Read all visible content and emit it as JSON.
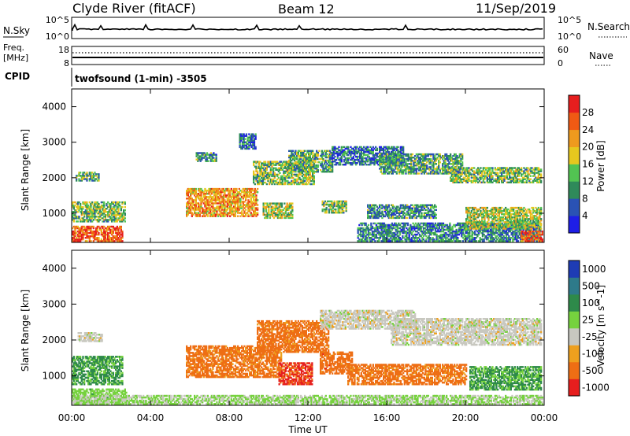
{
  "header": {
    "station": "Clyde River (fitACF)",
    "beam": "Beam 12",
    "date": "11/Sep/2019"
  },
  "strip": {
    "nsky_label": "N.Sky",
    "nsky_top": "10^5",
    "nsky_bottom": "10^0",
    "nsearch_top": "10^5",
    "nsearch_bottom": "10^0",
    "nsearch_label": "N.Search",
    "freq_label": "Freq.",
    "freq_unit": "[MHz]",
    "freq_top": "18",
    "freq_bottom": "8",
    "nave_top": "60",
    "nave_bottom": "0",
    "nave_label": "Nave",
    "cpid_label": "CPID",
    "cpid_text": "twofsound (1-min) -3505"
  },
  "axes": {
    "xlabel": "Time UT",
    "xticks": [
      "00:00",
      "04:00",
      "08:00",
      "12:00",
      "16:00",
      "20:00",
      "00:00"
    ],
    "ylabel": "Slant Range [km]",
    "yticks": [
      "1000",
      "2000",
      "3000",
      "4000"
    ]
  },
  "colorbars": {
    "power": {
      "label": "Power [dB]",
      "ticks": [
        "4",
        "8",
        "12",
        "16",
        "20",
        "24",
        "28"
      ],
      "colors": [
        "#1e1ee6",
        "#2a52b4",
        "#2f8a5a",
        "#52c452",
        "#e6c81e",
        "#ee9a1e",
        "#f05a14",
        "#e61e1e"
      ]
    },
    "velocity": {
      "label": "Velocity [m s^-1]",
      "ticks": [
        "1000",
        "500",
        "100",
        "25",
        "-25",
        "-100",
        "-500",
        "-1000"
      ],
      "colors": [
        "#1e3cb4",
        "#2e7a8a",
        "#2e8a4a",
        "#76d23e",
        "#c8c8c0",
        "#eea01e",
        "#ee6e14",
        "#e61e1e"
      ]
    }
  },
  "chart_data": [
    {
      "type": "heatmap",
      "panel": "power",
      "x_range_hours": [
        0,
        24
      ],
      "y_range_km": [
        180,
        4500
      ],
      "value_unit": "dB",
      "regions": [
        {
          "t0": 0.0,
          "t1": 2.6,
          "r0": 200,
          "r1": 650,
          "value": 26
        },
        {
          "t0": 0.0,
          "t1": 2.7,
          "r0": 750,
          "r1": 1300,
          "value": 14
        },
        {
          "t0": 0.2,
          "t1": 1.4,
          "r0": 1900,
          "r1": 2150,
          "value": 12
        },
        {
          "t0": 5.8,
          "t1": 9.4,
          "r0": 900,
          "r1": 1700,
          "value": 22
        },
        {
          "t0": 6.3,
          "t1": 7.3,
          "r0": 2450,
          "r1": 2700,
          "value": 10
        },
        {
          "t0": 8.5,
          "t1": 9.3,
          "r0": 2800,
          "r1": 3250,
          "value": 8
        },
        {
          "t0": 9.2,
          "t1": 12.3,
          "r0": 1800,
          "r1": 2450,
          "value": 14
        },
        {
          "t0": 9.7,
          "t1": 11.2,
          "r0": 850,
          "r1": 1300,
          "value": 16
        },
        {
          "t0": 11.0,
          "t1": 13.2,
          "r0": 2150,
          "r1": 2750,
          "value": 12
        },
        {
          "t0": 12.7,
          "t1": 13.9,
          "r0": 1000,
          "r1": 1350,
          "value": 14
        },
        {
          "t0": 13.2,
          "t1": 16.8,
          "r0": 2350,
          "r1": 2850,
          "value": 8
        },
        {
          "t0": 14.5,
          "t1": 23.8,
          "r0": 200,
          "r1": 700,
          "value": 9
        },
        {
          "t0": 15.0,
          "t1": 18.5,
          "r0": 850,
          "r1": 1250,
          "value": 10
        },
        {
          "t0": 15.6,
          "t1": 19.8,
          "r0": 2100,
          "r1": 2650,
          "value": 11
        },
        {
          "t0": 19.2,
          "t1": 23.8,
          "r0": 1850,
          "r1": 2300,
          "value": 14
        },
        {
          "t0": 20.0,
          "t1": 23.8,
          "r0": 550,
          "r1": 1150,
          "value": 16
        },
        {
          "t0": 22.8,
          "t1": 23.9,
          "r0": 200,
          "r1": 500,
          "value": 26
        }
      ]
    },
    {
      "type": "heatmap",
      "panel": "velocity",
      "x_range_hours": [
        0,
        24
      ],
      "y_range_km": [
        180,
        4500
      ],
      "value_unit": "m s^-1",
      "regions": [
        {
          "t0": 0.0,
          "t1": 2.8,
          "r0": 200,
          "r1": 650,
          "value": 60
        },
        {
          "t0": 0.0,
          "t1": 2.6,
          "r0": 750,
          "r1": 1550,
          "value": 150
        },
        {
          "t0": 0.3,
          "t1": 1.5,
          "r0": 1950,
          "r1": 2200,
          "value": 0
        },
        {
          "t0": 5.8,
          "t1": 10.6,
          "r0": 950,
          "r1": 1850,
          "value": -200
        },
        {
          "t0": 9.4,
          "t1": 13.0,
          "r0": 1650,
          "r1": 2550,
          "value": -200
        },
        {
          "t0": 10.5,
          "t1": 12.2,
          "r0": 750,
          "r1": 1350,
          "value": -600
        },
        {
          "t0": 12.6,
          "t1": 14.2,
          "r0": 1050,
          "r1": 1650,
          "value": -300
        },
        {
          "t0": 12.6,
          "t1": 17.4,
          "r0": 2300,
          "r1": 2800,
          "value": 0
        },
        {
          "t0": 14.0,
          "t1": 20.0,
          "r0": 750,
          "r1": 1300,
          "value": -200
        },
        {
          "t0": 16.2,
          "t1": 23.8,
          "r0": 1850,
          "r1": 2600,
          "value": 0
        },
        {
          "t0": 20.2,
          "t1": 23.8,
          "r0": 600,
          "r1": 1250,
          "value": 120
        },
        {
          "t0": 0.0,
          "t1": 23.9,
          "r0": 200,
          "r1": 450,
          "value": 30
        }
      ]
    }
  ]
}
